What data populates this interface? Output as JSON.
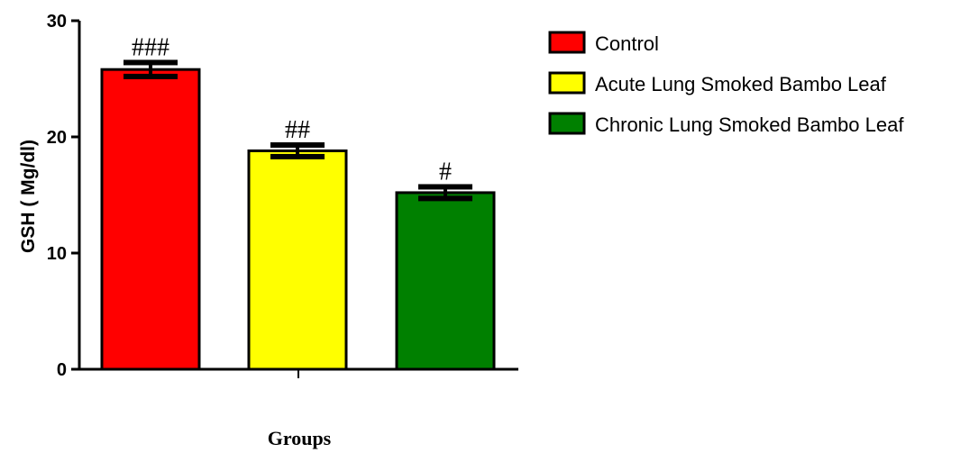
{
  "chart_data": {
    "type": "bar",
    "xlabel": "Groups",
    "ylabel": "GSH ( Mg/dl)",
    "ylim": [
      0,
      30
    ],
    "yticks": [
      0,
      10,
      20,
      30
    ],
    "grid": false,
    "legend_position": "top-right",
    "categories": [
      "Control",
      "Acute Lung Smoked Bambo Leaf",
      "Chronic Lung Smoked Bambo Leaf"
    ],
    "values": [
      25.8,
      18.8,
      15.2
    ],
    "errors": [
      0.6,
      0.5,
      0.5
    ],
    "annotations": [
      "###",
      "##",
      "#"
    ],
    "colors": [
      "#ff0000",
      "#ffff00",
      "#008000"
    ]
  }
}
